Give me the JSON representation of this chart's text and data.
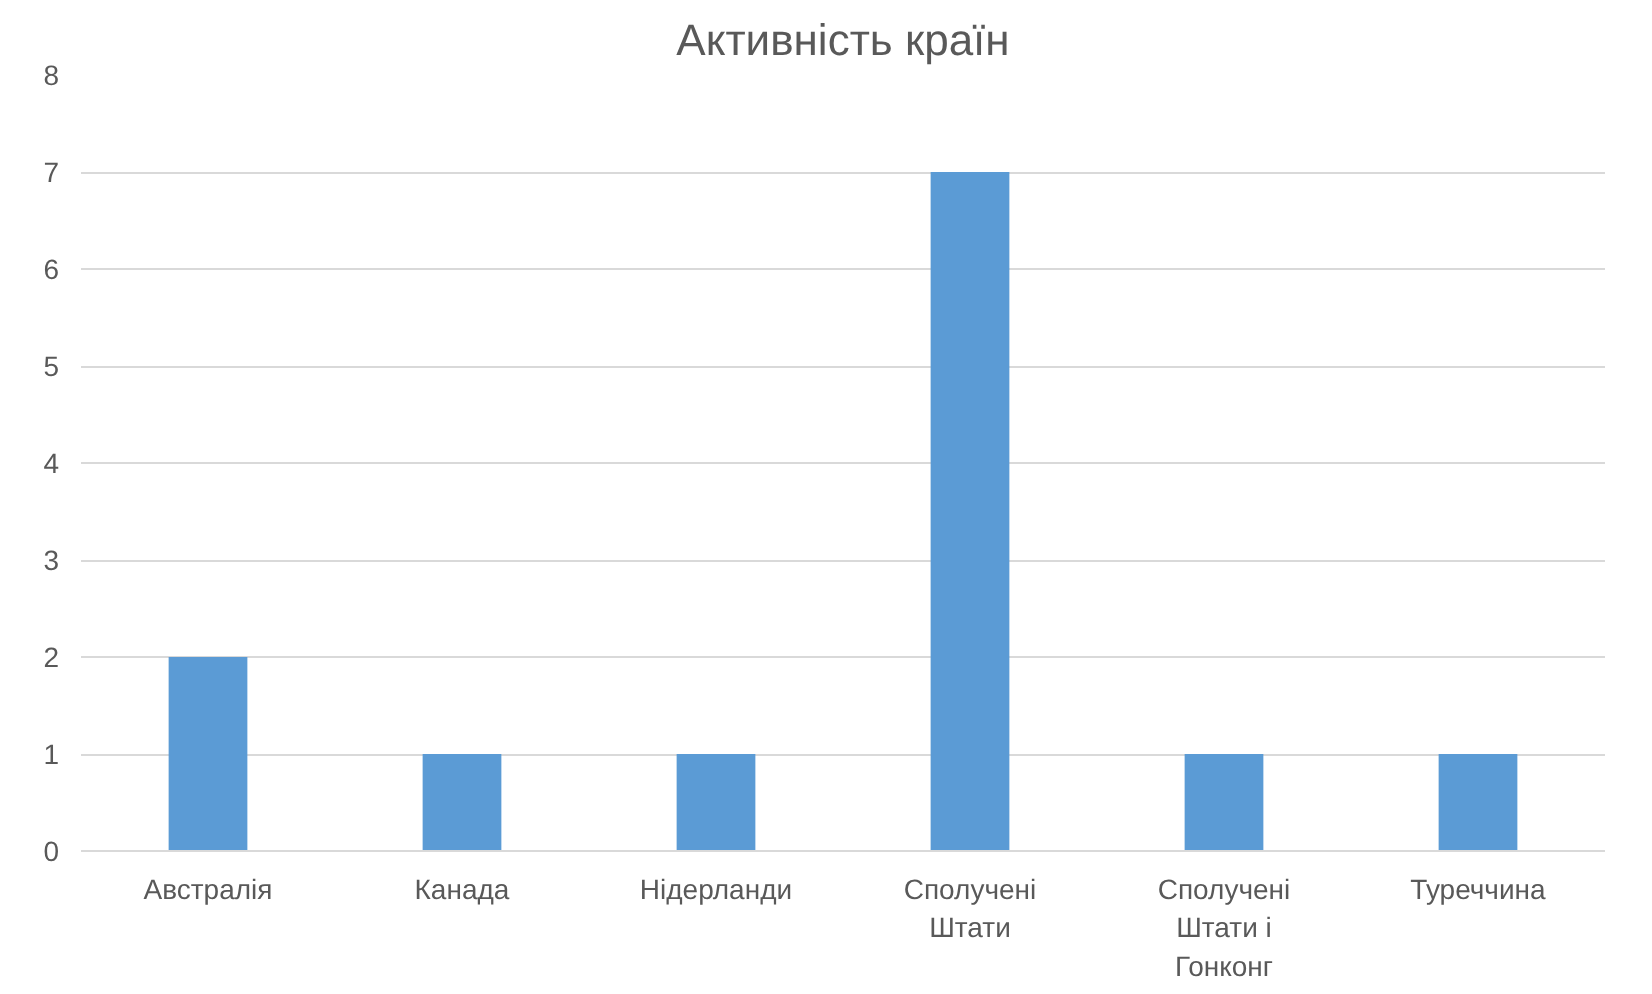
{
  "chart_data": {
    "type": "bar",
    "title": "Активність країн",
    "categories": [
      "Австралія",
      "Канада",
      "Нідерланди",
      "Сполучені Штати",
      "Сполучені Штати і Гонконг",
      "Туреччина"
    ],
    "values": [
      2,
      1,
      1,
      7,
      1,
      1
    ],
    "color": "#5b9bd5",
    "ylim": [
      0,
      8
    ],
    "yticks": [
      0,
      1,
      2,
      3,
      4,
      5,
      6,
      7,
      8
    ],
    "grid": "y"
  }
}
